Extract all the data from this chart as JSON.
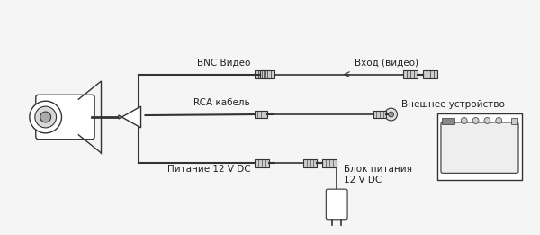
{
  "bg_color": "#f5f5f5",
  "line_color": "#333333",
  "text_color": "#222222",
  "labels": {
    "bnc": "BNC Видео",
    "rca": "RCA кабель",
    "power_cam": "Питание 12 V DC",
    "video_in": "Вход (видео)",
    "external": "Внешнее устройство",
    "power_block": "Блок питания\n12 V DC"
  },
  "figsize": [
    6.0,
    2.61
  ],
  "dpi": 100
}
